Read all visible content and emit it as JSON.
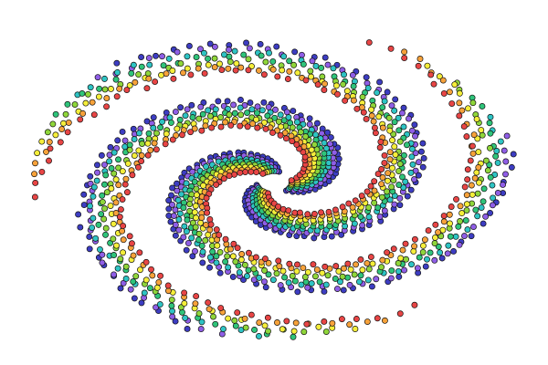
{
  "chart_data": {
    "type": "scatter",
    "title": "",
    "xlabel": "",
    "ylabel": "",
    "axes_visible": false,
    "grid": false,
    "legend": "none",
    "background": "#ffffff",
    "marker": {
      "shape": "circle",
      "edge_color": "#111111"
    },
    "center": [
      0.0,
      0.0
    ],
    "xlim": [
      -5.0,
      5.0
    ],
    "ylim": [
      -3.25,
      3.25
    ],
    "arms_per_color": 3,
    "series": [
      {
        "color": "#3d3dc2",
        "arm_angles_deg": [
          50,
          170,
          290
        ]
      },
      {
        "color": "#8f5ee6",
        "arm_angles_deg": [
          58,
          178,
          298
        ]
      },
      {
        "color": "#2ec4c4",
        "arm_angles_deg": [
          66,
          186,
          306
        ]
      },
      {
        "color": "#2fc47a",
        "arm_angles_deg": [
          74,
          194,
          314
        ]
      },
      {
        "color": "#8fd63a",
        "arm_angles_deg": [
          82,
          202,
          322
        ]
      },
      {
        "color": "#f5ee3a",
        "arm_angles_deg": [
          90,
          210,
          330
        ]
      },
      {
        "color": "#f7a23a",
        "arm_angles_deg": [
          98,
          218,
          338
        ]
      },
      {
        "color": "#e84545",
        "arm_angles_deg": [
          106,
          226,
          346
        ]
      }
    ],
    "spiral": {
      "r_min": 0.35,
      "r_max": 4.7,
      "y_scale": 0.62,
      "twist_deg_per_unit_r": 68,
      "points_per_arm": 60
    }
  }
}
